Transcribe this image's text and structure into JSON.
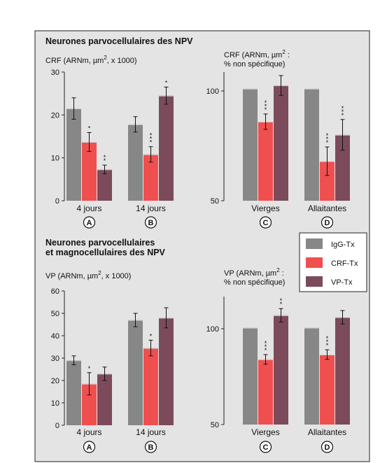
{
  "colors": {
    "background": "#e4e4e4",
    "border": "#222222",
    "igg": "#878787",
    "crf": "#f04f4f",
    "vp": "#7c4b5b",
    "axis": "#222222"
  },
  "sections": [
    {
      "title": "Neurones parvocellulaires des NPV"
    },
    {
      "title": "Neurones parvocellulaires",
      "title2": "et magnocellulaires des NPV"
    }
  ],
  "legend": {
    "position": "right-middle",
    "entries": [
      {
        "label": "IgG-Tx",
        "color": "#878787"
      },
      {
        "label": "CRF-Tx",
        "color": "#f04f4f"
      },
      {
        "label": "VP-Tx",
        "color": "#7c4b5b"
      }
    ]
  },
  "chart_data": [
    {
      "type": "bar",
      "ylabel": "CRF (ARNm, µm² x 1000)",
      "ylabel_parts": [
        "CRF (ARNm, µm",
        "2",
        ", x 1000)"
      ],
      "ylim": [
        0,
        30
      ],
      "yticks": [
        0,
        10,
        20,
        30
      ],
      "categories": [
        "4 jours",
        "14 jours"
      ],
      "panel_letters": [
        "A",
        "B"
      ],
      "series": [
        {
          "name": "IgG-Tx",
          "values": [
            21.5,
            17.8
          ],
          "errors": [
            2.5,
            1.8
          ],
          "sig": [
            "",
            ""
          ]
        },
        {
          "name": "CRF-Tx",
          "values": [
            13.7,
            10.8
          ],
          "errors": [
            2.2,
            1.8
          ],
          "sig": [
            "*",
            "***"
          ]
        },
        {
          "name": "VP-Tx",
          "values": [
            7.3,
            24.5
          ],
          "errors": [
            1.0,
            2.0
          ],
          "sig": [
            "**",
            "*"
          ]
        }
      ]
    },
    {
      "type": "bar",
      "ylabel": "CRF (ARNm, µm² : % non spécifique)",
      "ylabel_parts": [
        "CRF (ARNm, µm",
        "2",
        " :"
      ],
      "ylabel_line2": "% non spécifique)",
      "ylim": [
        50,
        115
      ],
      "yticks": [
        50,
        100
      ],
      "categories": [
        "Vierges",
        "Allaitantes"
      ],
      "panel_letters": [
        "C",
        "D"
      ],
      "series": [
        {
          "name": "IgG-Tx",
          "values": [
            101,
            101
          ],
          "errors": [
            0,
            0
          ],
          "sig": [
            "",
            ""
          ]
        },
        {
          "name": "CRF-Tx",
          "values": [
            86,
            68
          ],
          "errors": [
            3.5,
            6.5
          ],
          "sig": [
            "***",
            "***"
          ]
        },
        {
          "name": "VP-Tx",
          "values": [
            102.5,
            80
          ],
          "errors": [
            4.5,
            7.0
          ],
          "sig": [
            "",
            "***"
          ]
        }
      ]
    },
    {
      "type": "bar",
      "ylabel": "VP (ARNm, µm² x 1000)",
      "ylabel_parts": [
        "VP (ARNm, µm",
        "2",
        ", x 1000)"
      ],
      "ylim": [
        0,
        60
      ],
      "yticks": [
        0,
        10,
        20,
        30,
        40,
        50,
        60
      ],
      "categories": [
        "4 jours",
        "14 jours"
      ],
      "panel_letters": [
        "A",
        "B"
      ],
      "series": [
        {
          "name": "IgG-Tx",
          "values": [
            29,
            47
          ],
          "errors": [
            2.0,
            3.0
          ],
          "sig": [
            "",
            ""
          ]
        },
        {
          "name": "CRF-Tx",
          "values": [
            18.5,
            34.5
          ],
          "errors": [
            5.0,
            3.5
          ],
          "sig": [
            "*",
            "*"
          ]
        },
        {
          "name": "VP-Tx",
          "values": [
            23,
            48
          ],
          "errors": [
            3.0,
            4.5
          ],
          "sig": [
            "",
            ""
          ]
        }
      ]
    },
    {
      "type": "bar",
      "ylabel": "VP (ARNm, µm² : % non spécifique)",
      "ylabel_parts": [
        "VP (ARNm, µm",
        "2",
        " :"
      ],
      "ylabel_line2": "% non spécifique)",
      "ylim": [
        50,
        115
      ],
      "yticks": [
        50,
        100
      ],
      "categories": [
        "Vierges",
        "Allaitantes"
      ],
      "panel_letters": [
        "C",
        "D"
      ],
      "series": [
        {
          "name": "IgG-Tx",
          "values": [
            100.5,
            100.5
          ],
          "errors": [
            0,
            0
          ],
          "sig": [
            "",
            ""
          ]
        },
        {
          "name": "CRF-Tx",
          "values": [
            84,
            86.5
          ],
          "errors": [
            2.5,
            2.5
          ],
          "sig": [
            "***",
            "***"
          ]
        },
        {
          "name": "VP-Tx",
          "values": [
            107,
            106
          ],
          "errors": [
            3.5,
            3.5
          ],
          "sig": [
            "**",
            ""
          ]
        }
      ]
    }
  ]
}
